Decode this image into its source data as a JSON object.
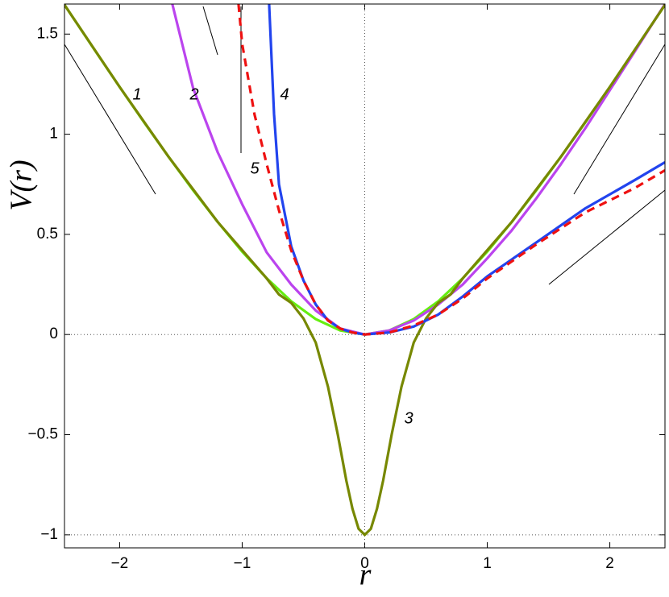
{
  "chart_data": {
    "type": "line",
    "xlabel": "r",
    "ylabel": "V(r)",
    "xlim": [
      -2.45,
      2.45
    ],
    "ylim": [
      -1.065,
      1.65
    ],
    "xticks": [
      {
        "value": -2,
        "label": "−2"
      },
      {
        "value": -1,
        "label": "−1"
      },
      0,
      1,
      2
    ],
    "yticks": [
      {
        "value": -1,
        "label": "−1"
      },
      {
        "value": -0.5,
        "label": "−0.5"
      },
      0,
      0.5,
      1,
      1.5
    ],
    "annotations": [
      "1",
      "2",
      "3",
      "4",
      "5"
    ],
    "series": [
      {
        "name": "1",
        "color": "#66ee11",
        "dash": false,
        "x": [
          -2.45,
          -2.2,
          -2,
          -1.8,
          -1.6,
          -1.4,
          -1.2,
          -1,
          -0.8,
          -0.6,
          -0.4,
          -0.2,
          0,
          0.2,
          0.4,
          0.6,
          0.8,
          1,
          1.2,
          1.4,
          1.6,
          1.8,
          2,
          2.2,
          2.45
        ],
        "values": [
          1.646,
          1.417,
          1.236,
          1.059,
          0.887,
          0.72,
          0.562,
          0.414,
          0.281,
          0.166,
          0.077,
          0.02,
          0,
          0.02,
          0.077,
          0.166,
          0.281,
          0.414,
          0.562,
          0.72,
          0.887,
          1.059,
          1.236,
          1.417,
          1.646
        ]
      },
      {
        "name": "2",
        "color": "#bb44ee",
        "dash": false,
        "x": [
          -1.57,
          -1.4,
          -1.2,
          -1,
          -0.8,
          -0.6,
          -0.4,
          -0.2,
          0,
          0.2,
          0.4,
          0.6,
          0.8,
          1,
          1.2,
          1.4,
          1.6,
          1.8,
          2,
          2.2,
          2.45
        ],
        "values": [
          1.65,
          1.23,
          0.91,
          0.65,
          0.41,
          0.25,
          0.12,
          0.03,
          0,
          0.02,
          0.07,
          0.15,
          0.25,
          0.38,
          0.52,
          0.68,
          0.85,
          1.03,
          1.22,
          1.41,
          1.65
        ]
      },
      {
        "name": "3",
        "color": "#778800",
        "dash": false,
        "x": [
          -2.45,
          -2,
          -1.6,
          -1.2,
          -0.8,
          -0.7,
          -0.6,
          -0.5,
          -0.4,
          -0.3,
          -0.22,
          -0.15,
          -0.1,
          -0.05,
          0,
          0.05,
          0.1,
          0.15,
          0.22,
          0.3,
          0.4,
          0.5,
          0.6,
          0.7,
          0.8,
          1.2,
          1.6,
          2,
          2.45
        ],
        "values": [
          1.646,
          1.236,
          0.887,
          0.562,
          0.28,
          0.2,
          0.158,
          0.08,
          -0.04,
          -0.26,
          -0.5,
          -0.73,
          -0.87,
          -0.97,
          -1,
          -0.97,
          -0.87,
          -0.73,
          -0.5,
          -0.26,
          -0.04,
          0.08,
          0.158,
          0.2,
          0.28,
          0.562,
          0.887,
          1.236,
          1.646
        ]
      },
      {
        "name": "4",
        "color": "#2244ee",
        "dash": false,
        "x": [
          -0.78,
          -0.74,
          -0.7,
          -0.6,
          -0.5,
          -0.4,
          -0.3,
          -0.2,
          -0.1,
          0,
          0.2,
          0.4,
          0.6,
          0.8,
          1,
          1.4,
          1.8,
          2.2,
          2.45
        ],
        "values": [
          1.65,
          1.1,
          0.75,
          0.44,
          0.27,
          0.15,
          0.07,
          0.03,
          0.01,
          0,
          0.01,
          0.04,
          0.1,
          0.19,
          0.29,
          0.46,
          0.63,
          0.77,
          0.86
        ]
      },
      {
        "name": "5",
        "color": "#ee1111",
        "dash": true,
        "x": [
          -1.03,
          -1,
          -0.9,
          -0.8,
          -0.7,
          -0.6,
          -0.5,
          -0.4,
          -0.3,
          -0.2,
          -0.1,
          0,
          0.2,
          0.4,
          0.6,
          0.8,
          1,
          1.4,
          1.8,
          2.2,
          2.45
        ],
        "values": [
          1.65,
          1.45,
          1.1,
          0.85,
          0.62,
          0.42,
          0.27,
          0.15,
          0.07,
          0.03,
          0.01,
          0,
          0.01,
          0.045,
          0.1,
          0.18,
          0.28,
          0.45,
          0.61,
          0.73,
          0.82
        ]
      }
    ]
  }
}
